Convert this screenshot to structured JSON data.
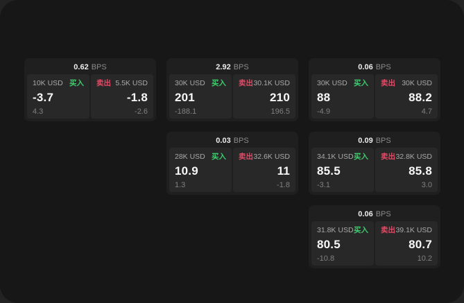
{
  "labels": {
    "bps": "BPS",
    "buy": "买入",
    "sell": "卖出"
  },
  "colors": {
    "buy_green": "#3dcd6d",
    "sell_red": "#e14a66",
    "panel_background": "#171717",
    "card_background": "#1f1f1f",
    "tile_background": "#282828"
  },
  "cards": [
    {
      "bps": "0.62",
      "buy": {
        "amount": "10K USD",
        "value": "-3.7",
        "sub": "4.3"
      },
      "sell": {
        "amount": "5.5K USD",
        "value": "-1.8",
        "sub": "-2.6"
      }
    },
    {
      "bps": "2.92",
      "buy": {
        "amount": "30K USD",
        "value": "201",
        "sub": "-188.1"
      },
      "sell": {
        "amount": "30.1K USD",
        "value": "210",
        "sub": "196.5"
      }
    },
    {
      "bps": "0.06",
      "buy": {
        "amount": "30K USD",
        "value": "88",
        "sub": "-4.9"
      },
      "sell": {
        "amount": "30K USD",
        "value": "88.2",
        "sub": "4.7"
      }
    },
    {
      "bps": "0.03",
      "buy": {
        "amount": "28K USD",
        "value": "10.9",
        "sub": "1.3"
      },
      "sell": {
        "amount": "32.6K USD",
        "value": "11",
        "sub": "-1.8"
      }
    },
    {
      "bps": "0.09",
      "buy": {
        "amount": "34.1K USD",
        "value": "85.5",
        "sub": "-3.1"
      },
      "sell": {
        "amount": "32.8K USD",
        "value": "85.8",
        "sub": "3.0"
      }
    },
    {
      "bps": "0.06",
      "buy": {
        "amount": "31.8K USD",
        "value": "80.5",
        "sub": "-10.8"
      },
      "sell": {
        "amount": "39.1K USD",
        "value": "80.7",
        "sub": "10.2"
      }
    }
  ]
}
